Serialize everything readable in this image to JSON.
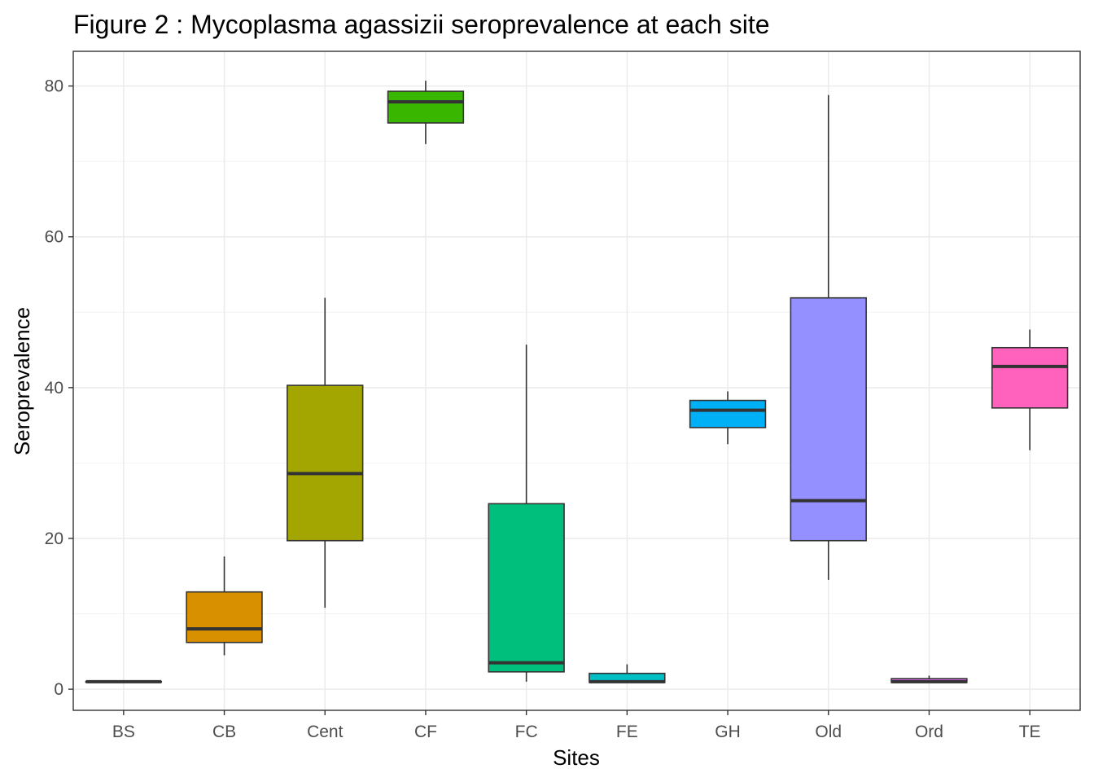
{
  "chart_data": {
    "type": "boxplot",
    "title": "Figure 2 : Mycoplasma agassizii seroprevalence at each site",
    "xlabel": "Sites",
    "ylabel": "Seroprevalence",
    "ylim": [
      -2.8,
      84.6
    ],
    "yticks": [
      0,
      20,
      40,
      60,
      80
    ],
    "yticks_minor": [
      10,
      30,
      50,
      70
    ],
    "grid": true,
    "legend": "none",
    "categories": [
      "BS",
      "CB",
      "Cent",
      "CF",
      "FC",
      "FE",
      "GH",
      "Old",
      "Ord",
      "TE"
    ],
    "boxes": [
      {
        "site": "BS",
        "min": 1.0,
        "q1": 1.0,
        "median": 1.0,
        "q3": 1.0,
        "max": 1.0,
        "color": "#F8766D"
      },
      {
        "site": "CB",
        "min": 4.5,
        "q1": 6.2,
        "median": 8.0,
        "q3": 12.9,
        "max": 17.6,
        "color": "#D89000"
      },
      {
        "site": "Cent",
        "min": 10.8,
        "q1": 19.7,
        "median": 28.6,
        "q3": 40.3,
        "max": 51.9,
        "color": "#A3A500"
      },
      {
        "site": "CF",
        "min": 72.3,
        "q1": 75.1,
        "median": 77.9,
        "q3": 79.3,
        "max": 80.7,
        "color": "#39B600"
      },
      {
        "site": "FC",
        "min": 1.0,
        "q1": 2.3,
        "median": 3.5,
        "q3": 24.6,
        "max": 45.7,
        "color": "#00BF7D"
      },
      {
        "site": "FE",
        "min": 0.9,
        "q1": 0.9,
        "median": 1.0,
        "q3": 2.1,
        "max": 3.3,
        "color": "#00BFC4"
      },
      {
        "site": "GH",
        "min": 32.5,
        "q1": 34.7,
        "median": 37.0,
        "q3": 38.3,
        "max": 39.5,
        "color": "#00B0F6"
      },
      {
        "site": "Old",
        "min": 14.5,
        "q1": 19.7,
        "median": 25.0,
        "q3": 51.9,
        "max": 78.8,
        "color": "#9590FF"
      },
      {
        "site": "Ord",
        "min": 0.9,
        "q1": 0.9,
        "median": 1.0,
        "q3": 1.4,
        "max": 1.8,
        "color": "#E76BF3"
      },
      {
        "site": "TE",
        "min": 31.7,
        "q1": 37.3,
        "median": 42.8,
        "q3": 45.3,
        "max": 47.7,
        "color": "#FF62BC"
      }
    ]
  }
}
